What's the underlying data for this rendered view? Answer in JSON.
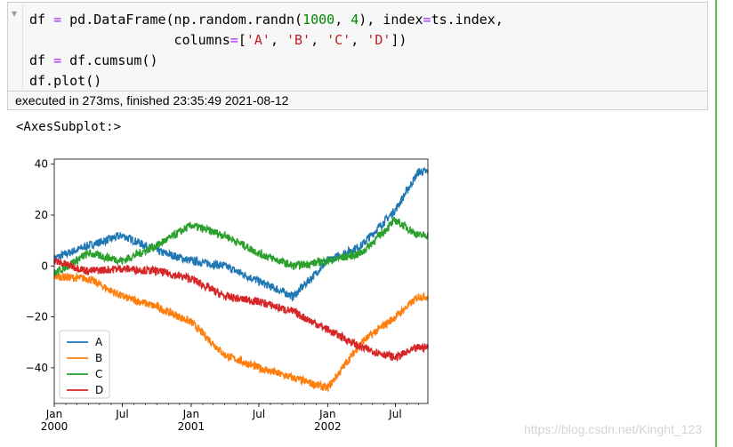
{
  "code_lines": [
    [
      {
        "t": "df "
      },
      {
        "t": "=",
        "c": "op"
      },
      {
        "t": " pd.DataFrame(np.random.randn("
      },
      {
        "t": "1000",
        "c": "num"
      },
      {
        "t": ", "
      },
      {
        "t": "4",
        "c": "num"
      },
      {
        "t": "), index"
      },
      {
        "t": "=",
        "c": "op"
      },
      {
        "t": "ts.index,"
      }
    ],
    [
      {
        "t": "                  columns"
      },
      {
        "t": "=",
        "c": "op"
      },
      {
        "t": "["
      },
      {
        "t": "'A'",
        "c": "str"
      },
      {
        "t": ", "
      },
      {
        "t": "'B'",
        "c": "str"
      },
      {
        "t": ", "
      },
      {
        "t": "'C'",
        "c": "str"
      },
      {
        "t": ", "
      },
      {
        "t": "'D'",
        "c": "str"
      },
      {
        "t": "])"
      }
    ],
    [
      {
        "t": "df "
      },
      {
        "t": "=",
        "c": "op"
      },
      {
        "t": " df.cumsum()"
      }
    ],
    [
      {
        "t": "df.plot()"
      }
    ]
  ],
  "status": "executed in 273ms, finished 23:35:49 2021-08-12",
  "output_repr": "<AxesSubplot:>",
  "watermark": "https://blog.csdn.net/Kinght_123",
  "chart_data": {
    "type": "line",
    "x": [
      "2000-01",
      "2000-04",
      "2000-07",
      "2000-10",
      "2001-01",
      "2001-04",
      "2001-07",
      "2001-10",
      "2002-01",
      "2002-04",
      "2002-07",
      "2002-09"
    ],
    "ylim": [
      -54,
      42
    ],
    "xlim": [
      "2000-01-01",
      "2002-09-26"
    ],
    "yticks": [
      -40,
      -20,
      0,
      20,
      40
    ],
    "ytick_labels": [
      "−40",
      "−20",
      "0",
      "20",
      "40"
    ],
    "xticks": [
      {
        "value": "2000-01-01",
        "label": "Jan",
        "sub": "2000"
      },
      {
        "value": "2000-07-01",
        "label": "Jul",
        "sub": ""
      },
      {
        "value": "2001-01-01",
        "label": "Jan",
        "sub": "2001"
      },
      {
        "value": "2001-07-01",
        "label": "Jul",
        "sub": ""
      },
      {
        "value": "2002-01-01",
        "label": "Jan",
        "sub": "2002"
      },
      {
        "value": "2002-07-01",
        "label": "Jul",
        "sub": ""
      }
    ],
    "series": [
      {
        "name": "A",
        "color": "#1f77b4",
        "values": [
          3,
          8,
          12,
          6,
          2,
          0,
          -6,
          -12,
          2,
          8,
          22,
          37
        ]
      },
      {
        "name": "B",
        "color": "#ff7f0e",
        "values": [
          -4,
          -5,
          -12,
          -16,
          -22,
          -35,
          -40,
          -44,
          -48,
          -30,
          -20,
          -12
        ]
      },
      {
        "name": "C",
        "color": "#2ca02c",
        "values": [
          -3,
          5,
          2,
          8,
          16,
          12,
          5,
          0,
          2,
          5,
          18,
          12
        ]
      },
      {
        "name": "D",
        "color": "#d62728",
        "values": [
          2,
          -2,
          -1,
          -2,
          -5,
          -12,
          -14,
          -18,
          -25,
          -32,
          -36,
          -32
        ]
      }
    ],
    "legend_position": "lower-left",
    "grid": false
  }
}
